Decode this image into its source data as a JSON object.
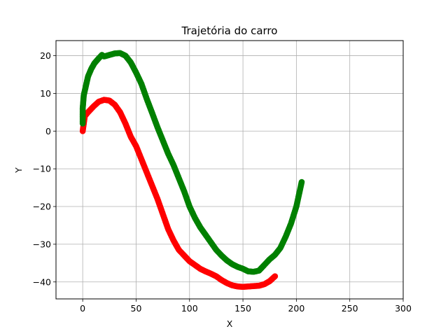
{
  "chart_data": {
    "type": "scatter",
    "title": "Trajetória do carro",
    "xlabel": "X",
    "ylabel": "Y",
    "xlim": [
      -25,
      300
    ],
    "ylim": [
      -44.5,
      24
    ],
    "xticks": [
      0,
      50,
      100,
      150,
      200,
      250,
      300
    ],
    "yticks": [
      -40,
      -30,
      -20,
      -10,
      0,
      10,
      20
    ],
    "xtick_labels": [
      "0",
      "50",
      "100",
      "150",
      "200",
      "250",
      "300"
    ],
    "ytick_labels": [
      "−40",
      "−30",
      "−20",
      "−10",
      "0",
      "10",
      "20"
    ],
    "grid": true,
    "series": [
      {
        "color": "#ff0000",
        "points": [
          [
            0,
            0
          ],
          [
            2,
            4
          ],
          [
            5,
            5
          ],
          [
            10,
            6.5
          ],
          [
            15,
            7.8
          ],
          [
            20,
            8.3
          ],
          [
            25,
            8.1
          ],
          [
            30,
            7
          ],
          [
            35,
            5
          ],
          [
            40,
            2
          ],
          [
            45,
            -1.5
          ],
          [
            50,
            -4
          ],
          [
            55,
            -7.5
          ],
          [
            60,
            -11
          ],
          [
            65,
            -14.5
          ],
          [
            70,
            -18
          ],
          [
            75,
            -22
          ],
          [
            80,
            -26
          ],
          [
            85,
            -29
          ],
          [
            90,
            -31.5
          ],
          [
            95,
            -33
          ],
          [
            100,
            -34.5
          ],
          [
            105,
            -35.5
          ],
          [
            110,
            -36.5
          ],
          [
            115,
            -37.2
          ],
          [
            120,
            -37.8
          ],
          [
            125,
            -38.5
          ],
          [
            130,
            -39.5
          ],
          [
            135,
            -40.3
          ],
          [
            140,
            -40.9
          ],
          [
            145,
            -41.2
          ],
          [
            150,
            -41.3
          ],
          [
            155,
            -41.2
          ],
          [
            160,
            -41.1
          ],
          [
            165,
            -41
          ],
          [
            170,
            -40.6
          ],
          [
            175,
            -39.8
          ],
          [
            180,
            -38.5
          ]
        ]
      },
      {
        "color": "#008000",
        "points": [
          [
            0,
            2
          ],
          [
            0,
            6
          ],
          [
            1,
            9.5
          ],
          [
            3,
            12
          ],
          [
            5,
            14.5
          ],
          [
            8,
            16.5
          ],
          [
            11,
            18
          ],
          [
            15,
            19.3
          ],
          [
            18,
            20.2
          ],
          [
            20,
            19.8
          ],
          [
            25,
            20.2
          ],
          [
            30,
            20.6
          ],
          [
            35,
            20.7
          ],
          [
            40,
            20
          ],
          [
            45,
            18.2
          ],
          [
            50,
            15.5
          ],
          [
            55,
            12.5
          ],
          [
            60,
            8.5
          ],
          [
            65,
            4.8
          ],
          [
            70,
            1
          ],
          [
            75,
            -2.5
          ],
          [
            80,
            -6
          ],
          [
            85,
            -9
          ],
          [
            90,
            -12.5
          ],
          [
            95,
            -16
          ],
          [
            100,
            -20
          ],
          [
            105,
            -23
          ],
          [
            110,
            -25.5
          ],
          [
            115,
            -27.5
          ],
          [
            120,
            -29.5
          ],
          [
            125,
            -31.5
          ],
          [
            130,
            -33
          ],
          [
            135,
            -34.3
          ],
          [
            140,
            -35.3
          ],
          [
            145,
            -36
          ],
          [
            150,
            -36.5
          ],
          [
            155,
            -37.2
          ],
          [
            160,
            -37.3
          ],
          [
            165,
            -37
          ],
          [
            170,
            -35.5
          ],
          [
            175,
            -34
          ],
          [
            180,
            -32.8
          ],
          [
            185,
            -31
          ],
          [
            190,
            -28
          ],
          [
            195,
            -24.5
          ],
          [
            200,
            -20
          ],
          [
            205,
            -13.5
          ]
        ]
      }
    ]
  }
}
